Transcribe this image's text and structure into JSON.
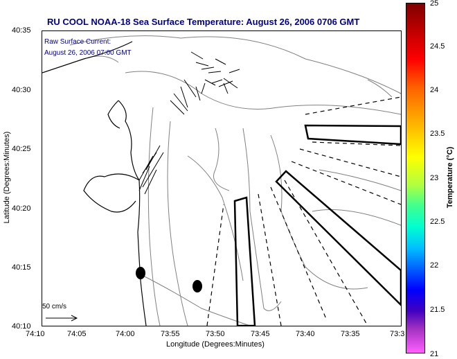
{
  "title": "RU COOL  NOAA-18  Sea Surface Temperature:  August 26, 2006 0706 GMT",
  "annotation": {
    "line1": "Raw Surface Current:",
    "line2": "August 26, 2006 07:00 GMT"
  },
  "scale": {
    "label": "50 cm/s"
  },
  "axes": {
    "xlabel": "Longitude (Degrees:Minutes)",
    "ylabel": "Latitude (Degrees:Minutes)",
    "xticks": [
      "74:10",
      "74:05",
      "74:00",
      "73:55",
      "73:50",
      "73:45",
      "73:40",
      "73:35",
      "73:3"
    ],
    "yticks": [
      "40:35",
      "40:30",
      "40:25",
      "40:20",
      "40:15",
      "40:10"
    ]
  },
  "colorbar": {
    "label": "Temperature (°C)",
    "ticks": [
      "25",
      "24.5",
      "24",
      "23.5",
      "23",
      "22.5",
      "22",
      "21.5",
      "21"
    ]
  },
  "colors": {
    "title": "#00008b",
    "contour": "#808080",
    "coast": "#000000"
  }
}
